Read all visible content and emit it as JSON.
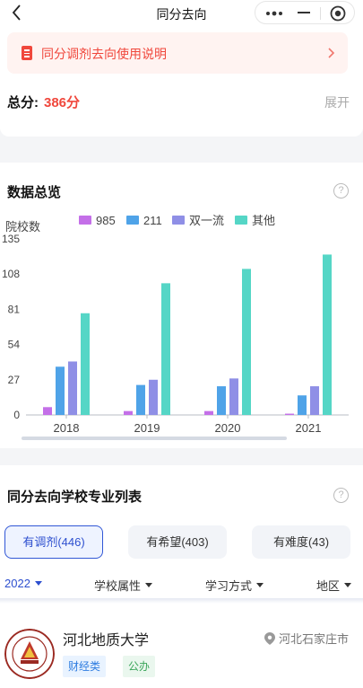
{
  "nav": {
    "title": "同分去向"
  },
  "notice": {
    "text": "同分调剂去向使用说明"
  },
  "score": {
    "label": "总分:",
    "value": "386分",
    "expand": "展开"
  },
  "overview": {
    "title": "数据总览",
    "help": "?",
    "ylabel": "院校数"
  },
  "chart_data": {
    "type": "bar",
    "title": "数据总览",
    "ylabel": "院校数",
    "xlabel": "",
    "categories": [
      "2018",
      "2019",
      "2020",
      "2021"
    ],
    "yticks": [
      0,
      27,
      54,
      81,
      108,
      135
    ],
    "ylim": [
      0,
      135
    ],
    "legend_position": "top",
    "grid": false,
    "series": [
      {
        "name": "985",
        "color": "#c46fe8",
        "values": [
          6,
          3,
          3,
          1
        ]
      },
      {
        "name": "211",
        "color": "#4fa3e8",
        "values": [
          37,
          23,
          22,
          15
        ]
      },
      {
        "name": "双一流",
        "color": "#8f8fe6",
        "values": [
          41,
          27,
          28,
          22
        ]
      },
      {
        "name": "其他",
        "color": "#55d6c6",
        "values": [
          78,
          101,
          112,
          123
        ]
      }
    ]
  },
  "list": {
    "title": "同分去向学校专业列表",
    "help": "?",
    "tabs": [
      {
        "label": "有调剂(446)"
      },
      {
        "label": "有希望(403)"
      },
      {
        "label": "有难度(43)"
      }
    ],
    "filters": {
      "year": "2022",
      "school_attr": "学校属性",
      "study_mode": "学习方式",
      "region": "地区"
    }
  },
  "school": {
    "name": "河北地质大学",
    "location": "河北石家庄市",
    "tags": [
      "财经类",
      "公办"
    ]
  },
  "colors": {
    "accent": "#f0473c",
    "primary": "#2d4fcf"
  }
}
